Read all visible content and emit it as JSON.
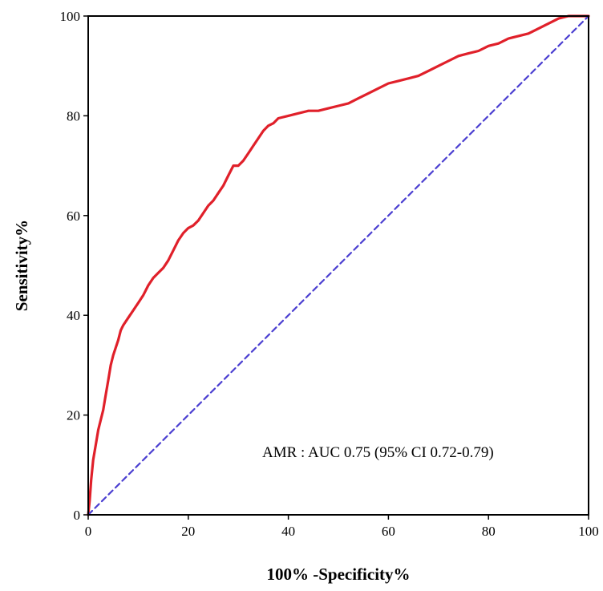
{
  "chart_data": {
    "type": "line",
    "title": "",
    "xlabel": "100% -Specificity%",
    "ylabel": "Sensitivity%",
    "xlim": [
      0,
      100
    ],
    "ylim": [
      0,
      100
    ],
    "x_ticks": [
      0,
      20,
      40,
      60,
      80,
      100
    ],
    "y_ticks": [
      0,
      20,
      40,
      60,
      80,
      100
    ],
    "grid": false,
    "annotation": "AMR : AUC 0.75 (95% CI 0.72-0.79)",
    "series": [
      {
        "color": "#e0202a",
        "line_style": "solid",
        "points": [
          [
            0,
            0
          ],
          [
            0.3,
            3
          ],
          [
            0.6,
            7
          ],
          [
            1,
            11
          ],
          [
            1.5,
            14
          ],
          [
            2,
            17
          ],
          [
            2.5,
            19
          ],
          [
            3,
            21
          ],
          [
            3.5,
            24
          ],
          [
            4,
            27
          ],
          [
            4.5,
            30
          ],
          [
            5,
            32
          ],
          [
            5.5,
            33.5
          ],
          [
            6,
            35
          ],
          [
            6.5,
            37
          ],
          [
            7,
            38
          ],
          [
            8,
            39.5
          ],
          [
            9,
            41
          ],
          [
            10,
            42.5
          ],
          [
            11,
            44
          ],
          [
            12,
            46
          ],
          [
            13,
            47.5
          ],
          [
            14,
            48.5
          ],
          [
            15,
            49.5
          ],
          [
            16,
            51
          ],
          [
            17,
            53
          ],
          [
            18,
            55
          ],
          [
            19,
            56.5
          ],
          [
            20,
            57.5
          ],
          [
            21,
            58
          ],
          [
            22,
            59
          ],
          [
            23,
            60.5
          ],
          [
            24,
            62
          ],
          [
            25,
            63
          ],
          [
            26,
            64.5
          ],
          [
            27,
            66
          ],
          [
            28,
            68
          ],
          [
            29,
            70
          ],
          [
            30,
            70
          ],
          [
            31,
            71
          ],
          [
            32,
            72.5
          ],
          [
            33,
            74
          ],
          [
            34,
            75.5
          ],
          [
            35,
            77
          ],
          [
            36,
            78
          ],
          [
            37,
            78.5
          ],
          [
            38,
            79.5
          ],
          [
            40,
            80
          ],
          [
            42,
            80.5
          ],
          [
            44,
            81
          ],
          [
            46,
            81
          ],
          [
            48,
            81.5
          ],
          [
            50,
            82
          ],
          [
            52,
            82.5
          ],
          [
            54,
            83.5
          ],
          [
            56,
            84.5
          ],
          [
            58,
            85.5
          ],
          [
            60,
            86.5
          ],
          [
            62,
            87
          ],
          [
            64,
            87.5
          ],
          [
            66,
            88
          ],
          [
            68,
            89
          ],
          [
            70,
            90
          ],
          [
            72,
            91
          ],
          [
            74,
            92
          ],
          [
            76,
            92.5
          ],
          [
            78,
            93
          ],
          [
            80,
            94
          ],
          [
            82,
            94.5
          ],
          [
            84,
            95.5
          ],
          [
            86,
            96
          ],
          [
            88,
            96.5
          ],
          [
            90,
            97.5
          ],
          [
            92,
            98.5
          ],
          [
            94,
            99.5
          ],
          [
            96,
            100
          ],
          [
            100,
            100
          ]
        ]
      },
      {
        "color": "#4b3fd1",
        "line_style": "dashed",
        "points": [
          [
            0,
            0
          ],
          [
            100,
            100
          ]
        ]
      }
    ]
  }
}
